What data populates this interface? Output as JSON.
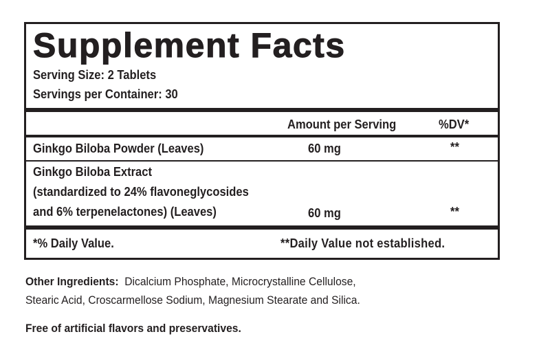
{
  "label": {
    "title": "Supplement Facts",
    "serving_size": "Serving Size: 2 Tablets",
    "servings_per_container": "Servings per Container: 30",
    "columns": {
      "amount": "Amount per Serving",
      "dv": "%DV*"
    },
    "rows": [
      {
        "name_lines": [
          "Ginkgo Biloba Powder (Leaves)"
        ],
        "amount": "60 mg",
        "dv": "**"
      },
      {
        "name_lines": [
          "Ginkgo Biloba Extract",
          "(standardized to 24% flavoneglycosides",
          "and 6% terpenelactones) (Leaves)"
        ],
        "amount": "60 mg",
        "dv": "**"
      }
    ],
    "footnote_left": "*% Daily Value.",
    "footnote_right": "**Daily Value not established."
  },
  "other": {
    "label": "Other Ingredients:",
    "line1": "Dicalcium Phosphate, Microcrystalline Cellulose,",
    "line2": "Stearic Acid, Croscarmellose Sodium, Magnesium Stearate and Silica.",
    "free_of": "Free of artificial flavors and preservatives."
  }
}
